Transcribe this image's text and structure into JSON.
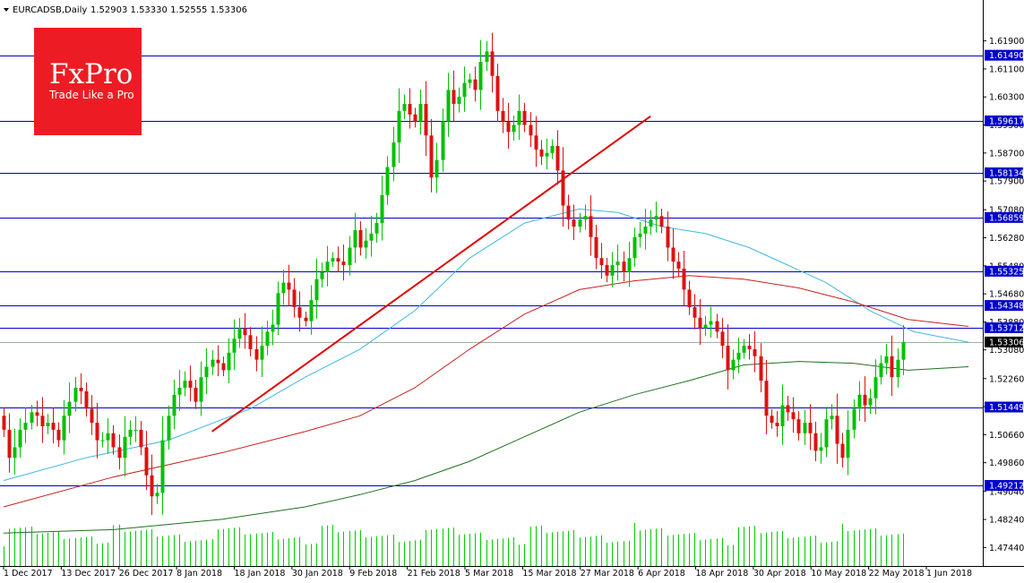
{
  "header": {
    "symbol_timeframe": "EURCADSB,Daily",
    "ohlc": "1.52903 1.53330 1.52555 1.53306"
  },
  "logo": {
    "brand": "FxPro",
    "tagline": "Trade Like a Pro"
  },
  "colors": {
    "up_candle": "#00c000",
    "down_candle": "#dd1111",
    "level_line": "#0000cc",
    "trendline": "#e00000",
    "ma_fast": "#40b8e0",
    "ma_mid": "#c82020",
    "ma_slow": "#207020",
    "volume": "#00cc00",
    "logo_bg": "#ed1c24"
  },
  "chart_data": {
    "type": "candlestick",
    "symbol": "EURCADSB",
    "timeframe": "Daily",
    "ylim": [
      1.4704,
      1.623
    ],
    "y_ticks": [
      "1.61900",
      "1.61100",
      "1.60300",
      "1.59500",
      "1.58700",
      "1.57900",
      "1.57080",
      "1.56280",
      "1.55480",
      "1.54680",
      "1.53880",
      "1.53080",
      "1.52260",
      "1.51460",
      "1.50660",
      "1.49860",
      "1.49040",
      "1.48240",
      "1.47440"
    ],
    "x_labels": [
      "1 Dec 2017",
      "13 Dec 2017",
      "26 Dec 2017",
      "8 Jan 2018",
      "18 Jan 2018",
      "30 Jan 2018",
      "9 Feb 2018",
      "21 Feb 2018",
      "5 Mar 2018",
      "15 Mar 2018",
      "27 Mar 2018",
      "6 Apr 2018",
      "18 Apr 2018",
      "30 Apr 2018",
      "10 May 2018",
      "22 May 2018",
      "1 Jun 2018"
    ],
    "close_series": [
      1.508,
      1.5,
      1.503,
      1.508,
      1.51,
      1.513,
      1.512,
      1.509,
      1.51,
      1.508,
      1.505,
      1.512,
      1.516,
      1.52,
      1.519,
      1.514,
      1.51,
      1.505,
      1.505,
      1.507,
      1.503,
      1.5,
      1.506,
      1.508,
      1.508,
      1.503,
      1.495,
      1.489,
      1.49,
      1.505,
      1.512,
      1.518,
      1.52,
      1.522,
      1.52,
      1.516,
      1.523,
      1.526,
      1.528,
      1.527,
      1.525,
      1.53,
      1.534,
      1.537,
      1.535,
      1.531,
      1.528,
      1.532,
      1.536,
      1.538,
      1.547,
      1.55,
      1.548,
      1.543,
      1.54,
      1.539,
      1.545,
      1.551,
      1.553,
      1.556,
      1.557,
      1.556,
      1.555,
      1.56,
      1.565,
      1.56,
      1.562,
      1.564,
      1.567,
      1.575,
      1.583,
      1.59,
      1.599,
      1.601,
      1.598,
      1.596,
      1.601,
      1.592,
      1.58,
      1.585,
      1.596,
      1.605,
      1.601,
      1.603,
      1.607,
      1.608,
      1.605,
      1.613,
      1.616,
      1.609,
      1.599,
      1.596,
      1.593,
      1.595,
      1.599,
      1.595,
      1.592,
      1.588,
      1.586,
      1.587,
      1.589,
      1.582,
      1.572,
      1.568,
      1.566,
      1.568,
      1.569,
      1.563,
      1.557,
      1.555,
      1.552,
      1.555,
      1.556,
      1.553,
      1.557,
      1.563,
      1.564,
      1.566,
      1.568,
      1.569,
      1.566,
      1.56,
      1.556,
      1.554,
      1.548,
      1.543,
      1.54,
      1.537,
      1.538,
      1.539,
      1.536,
      1.532,
      1.525,
      1.528,
      1.53,
      1.532,
      1.531,
      1.529,
      1.522,
      1.512,
      1.51,
      1.509,
      1.515,
      1.513,
      1.511,
      1.507,
      1.51,
      1.507,
      1.502,
      1.503,
      1.511,
      1.512,
      1.504,
      1.5,
      1.508,
      1.514,
      1.518,
      1.515,
      1.517,
      1.523,
      1.527,
      1.529,
      1.523,
      1.528,
      1.533
    ],
    "levels": [
      "1.61490",
      "1.59617",
      "1.58134",
      "1.56859",
      "1.55325",
      "1.54348",
      "1.53712",
      "1.51449",
      "1.49212"
    ],
    "current_price": "1.53306",
    "moving_averages": [
      {
        "color": "fast (cyan)",
        "points": [
          [
            0,
            1.4935
          ],
          [
            15,
            1.5
          ],
          [
            30,
            1.505
          ],
          [
            45,
            1.514
          ],
          [
            55,
            1.523
          ],
          [
            65,
            1.531
          ],
          [
            75,
            1.542
          ],
          [
            85,
            1.557
          ],
          [
            95,
            1.567
          ],
          [
            105,
            1.571
          ],
          [
            112,
            1.57
          ],
          [
            120,
            1.566
          ],
          [
            128,
            1.564
          ],
          [
            136,
            1.56
          ],
          [
            143,
            1.555
          ],
          [
            150,
            1.55
          ],
          [
            158,
            1.542
          ],
          [
            166,
            1.536
          ],
          [
            176,
            1.533
          ]
        ]
      },
      {
        "color": "mid (red)",
        "points": [
          [
            0,
            1.486
          ],
          [
            20,
            1.4945
          ],
          [
            40,
            1.5015
          ],
          [
            55,
            1.5075
          ],
          [
            65,
            1.512
          ],
          [
            75,
            1.52
          ],
          [
            85,
            1.531
          ],
          [
            95,
            1.541
          ],
          [
            105,
            1.548
          ],
          [
            115,
            1.5505
          ],
          [
            125,
            1.552
          ],
          [
            135,
            1.551
          ],
          [
            145,
            1.5485
          ],
          [
            155,
            1.5445
          ],
          [
            165,
            1.5395
          ],
          [
            176,
            1.5375
          ]
        ]
      },
      {
        "color": "slow (green)",
        "points": [
          [
            0,
            1.4785
          ],
          [
            20,
            1.4795
          ],
          [
            40,
            1.4825
          ],
          [
            55,
            1.486
          ],
          [
            65,
            1.4895
          ],
          [
            75,
            1.4935
          ],
          [
            85,
            1.499
          ],
          [
            95,
            1.506
          ],
          [
            105,
            1.513
          ],
          [
            115,
            1.518
          ],
          [
            125,
            1.522
          ],
          [
            135,
            1.5265
          ],
          [
            145,
            1.5275
          ],
          [
            155,
            1.527
          ],
          [
            165,
            1.525
          ],
          [
            176,
            1.526
          ]
        ]
      }
    ],
    "trendline": [
      [
        38,
        1.5075
      ],
      [
        118,
        1.5975
      ]
    ]
  }
}
